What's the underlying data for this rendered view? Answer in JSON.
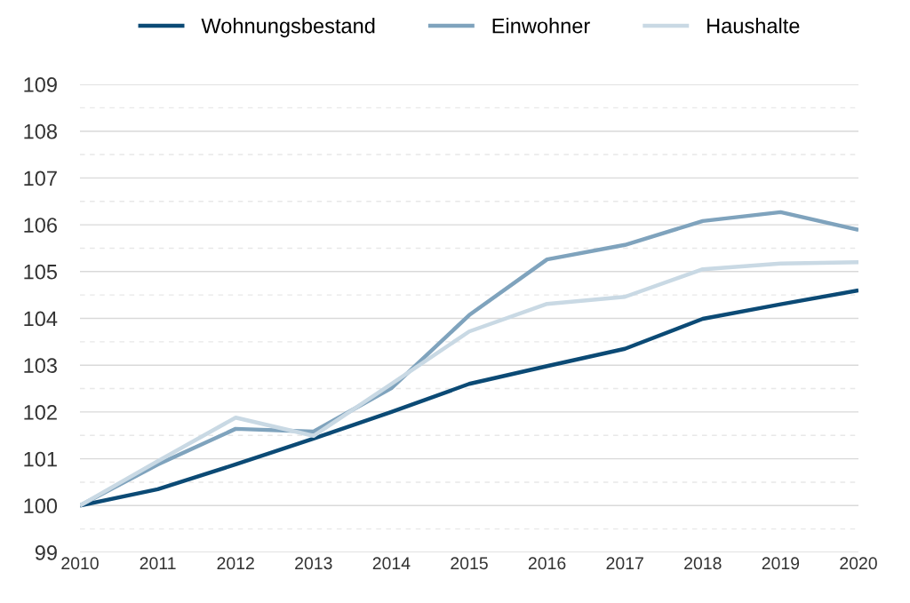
{
  "chart_data": {
    "type": "line",
    "x": [
      2010,
      2011,
      2012,
      2013,
      2014,
      2015,
      2016,
      2017,
      2018,
      2019,
      2020
    ],
    "series": [
      {
        "name": "Wohnungsbestand",
        "color": "#0b4a75",
        "values": [
          100,
          100.35,
          100.88,
          101.43,
          102.0,
          102.6,
          102.98,
          103.35,
          103.99,
          104.3,
          104.6
        ]
      },
      {
        "name": "Einwohner",
        "color": "#7fa3bd",
        "values": [
          100,
          100.88,
          101.64,
          101.58,
          102.51,
          104.07,
          105.26,
          105.57,
          106.08,
          106.27,
          105.89
        ]
      },
      {
        "name": "Haushalte",
        "color": "#c9d9e4",
        "values": [
          100,
          100.95,
          101.88,
          101.49,
          102.6,
          103.72,
          104.31,
          104.46,
          105.05,
          105.17,
          105.2
        ]
      }
    ],
    "xlim": [
      2010,
      2020
    ],
    "xticks": [
      2010,
      2011,
      2012,
      2013,
      2014,
      2015,
      2016,
      2017,
      2018,
      2019,
      2020
    ],
    "ylim": [
      99,
      109
    ],
    "yticks": [
      99,
      {
        "value": 99.5,
        "label": null
      },
      100,
      {
        "value": 100.5,
        "label": null
      },
      101,
      {
        "value": 101.5,
        "label": null
      },
      102,
      {
        "value": 102.5,
        "label": null
      },
      103,
      {
        "value": 103.5,
        "label": null
      },
      104,
      {
        "value": 104.5,
        "label": null
      },
      105,
      {
        "value": 105.5,
        "label": null
      },
      106,
      {
        "value": 106.5,
        "label": null
      },
      107,
      {
        "value": 107.5,
        "label": null
      },
      108,
      {
        "value": 108.5,
        "label": null
      },
      109
    ],
    "grid": "y",
    "legend": "top",
    "line_style": "solid",
    "marker": "none"
  }
}
